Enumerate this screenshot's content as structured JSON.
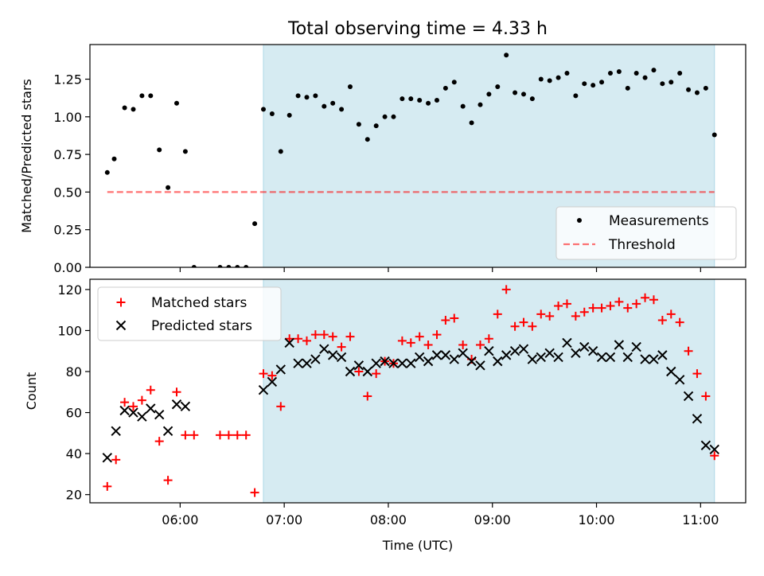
{
  "title": "Total observing time = 4.33 h",
  "colors": {
    "shade": "#add8e6",
    "threshold": "#ff0000",
    "matched": "#ff0000",
    "predicted": "#000000",
    "measurement": "#000000"
  },
  "chart_data": [
    {
      "type": "scatter",
      "ylabel": "Matched/Predicted stars",
      "xlim": [
        "05:08",
        "11:26"
      ],
      "ylim": [
        0,
        1.48
      ],
      "ytick_labels": [
        "0.00",
        "0.25",
        "0.50",
        "0.75",
        "1.00",
        "1.25"
      ],
      "shaded_span": [
        "06:48",
        "11:08"
      ],
      "legend": {
        "position": "lower right",
        "entries": [
          "Measurements",
          "Threshold"
        ]
      },
      "threshold": {
        "name": "Threshold",
        "value": 0.5,
        "x": [
          "05:18",
          "11:08"
        ],
        "style": "dashed"
      },
      "series": [
        {
          "name": "Measurements",
          "x": [
            "05:18",
            "05:22",
            "05:28",
            "05:33",
            "05:38",
            "05:43",
            "05:48",
            "05:53",
            "05:58",
            "06:03",
            "06:08",
            "06:23",
            "06:28",
            "06:33",
            "06:38",
            "06:43",
            "06:48",
            "06:53",
            "06:58",
            "07:03",
            "07:08",
            "07:13",
            "07:18",
            "07:23",
            "07:28",
            "07:33",
            "07:38",
            "07:43",
            "07:48",
            "07:53",
            "07:58",
            "08:03",
            "08:08",
            "08:13",
            "08:18",
            "08:23",
            "08:28",
            "08:33",
            "08:38",
            "08:43",
            "08:48",
            "08:53",
            "08:58",
            "09:03",
            "09:08",
            "09:13",
            "09:18",
            "09:23",
            "09:28",
            "09:33",
            "09:38",
            "09:43",
            "09:48",
            "09:53",
            "09:58",
            "10:03",
            "10:08",
            "10:13",
            "10:18",
            "10:23",
            "10:28",
            "10:33",
            "10:38",
            "10:43",
            "10:48",
            "10:53",
            "10:58",
            "11:03",
            "11:08"
          ],
          "y": [
            0.63,
            0.72,
            1.06,
            1.05,
            1.14,
            1.14,
            0.78,
            0.53,
            1.09,
            0.77,
            0.0,
            0.0,
            0.0,
            0.0,
            0.0,
            0.29,
            1.05,
            1.02,
            0.77,
            1.01,
            1.14,
            1.13,
            1.14,
            1.07,
            1.09,
            1.05,
            1.2,
            0.95,
            0.85,
            0.94,
            1.0,
            1.0,
            1.12,
            1.12,
            1.11,
            1.09,
            1.11,
            1.19,
            1.23,
            1.07,
            0.96,
            1.08,
            1.15,
            1.2,
            1.41,
            1.16,
            1.15,
            1.12,
            1.25,
            1.24,
            1.26,
            1.29,
            1.14,
            1.22,
            1.21,
            1.23,
            1.29,
            1.3,
            1.19,
            1.29,
            1.26,
            1.31,
            1.22,
            1.23,
            1.29,
            1.18,
            1.16,
            1.19,
            0.88
          ]
        }
      ]
    },
    {
      "type": "scatter",
      "xlabel": "Time (UTC)",
      "ylabel": "Count",
      "xlim": [
        "05:08",
        "11:26"
      ],
      "ylim": [
        16,
        125
      ],
      "xtick_labels": [
        "06:00",
        "07:00",
        "08:00",
        "09:00",
        "10:00",
        "11:00"
      ],
      "ytick_labels": [
        "20",
        "40",
        "60",
        "80",
        "100",
        "120"
      ],
      "shaded_span": [
        "06:48",
        "11:08"
      ],
      "legend": {
        "position": "upper left",
        "entries": [
          "Matched stars",
          "Predicted stars"
        ]
      },
      "series": [
        {
          "name": "Matched stars",
          "marker": "+",
          "x": [
            "05:18",
            "05:23",
            "05:28",
            "05:33",
            "05:38",
            "05:43",
            "05:48",
            "05:53",
            "05:58",
            "06:03",
            "06:08",
            "06:23",
            "06:28",
            "06:33",
            "06:38",
            "06:43",
            "06:48",
            "06:53",
            "06:58",
            "07:03",
            "07:08",
            "07:13",
            "07:18",
            "07:23",
            "07:28",
            "07:33",
            "07:38",
            "07:43",
            "07:48",
            "07:53",
            "07:58",
            "08:03",
            "08:08",
            "08:13",
            "08:18",
            "08:23",
            "08:28",
            "08:33",
            "08:38",
            "08:43",
            "08:48",
            "08:53",
            "08:58",
            "09:03",
            "09:08",
            "09:13",
            "09:18",
            "09:23",
            "09:28",
            "09:33",
            "09:38",
            "09:43",
            "09:48",
            "09:53",
            "09:58",
            "10:03",
            "10:08",
            "10:13",
            "10:18",
            "10:23",
            "10:28",
            "10:33",
            "10:38",
            "10:43",
            "10:48",
            "10:53",
            "10:58",
            "11:03",
            "11:08"
          ],
          "y": [
            24,
            37,
            65,
            63,
            66,
            71,
            46,
            27,
            70,
            49,
            49,
            49,
            49,
            49,
            49,
            21,
            79,
            78,
            63,
            96,
            96,
            95,
            98,
            98,
            97,
            92,
            97,
            80,
            68,
            79,
            85,
            84,
            95,
            94,
            97,
            93,
            98,
            105,
            106,
            93,
            86,
            93,
            96,
            108,
            120,
            102,
            104,
            102,
            108,
            107,
            112,
            113,
            107,
            109,
            111,
            111,
            112,
            114,
            111,
            113,
            116,
            115,
            105,
            108,
            104,
            90,
            79,
            68,
            39
          ]
        },
        {
          "name": "Predicted stars",
          "marker": "x",
          "x": [
            "05:18",
            "05:23",
            "05:28",
            "05:33",
            "05:38",
            "05:43",
            "05:48",
            "05:53",
            "05:58",
            "06:03",
            "06:48",
            "06:53",
            "06:58",
            "07:03",
            "07:08",
            "07:13",
            "07:18",
            "07:23",
            "07:28",
            "07:33",
            "07:38",
            "07:43",
            "07:48",
            "07:53",
            "07:58",
            "08:03",
            "08:08",
            "08:13",
            "08:18",
            "08:23",
            "08:28",
            "08:33",
            "08:38",
            "08:43",
            "08:48",
            "08:53",
            "08:58",
            "09:03",
            "09:08",
            "09:13",
            "09:18",
            "09:23",
            "09:28",
            "09:33",
            "09:38",
            "09:43",
            "09:48",
            "09:53",
            "09:58",
            "10:03",
            "10:08",
            "10:13",
            "10:18",
            "10:23",
            "10:28",
            "10:33",
            "10:38",
            "10:43",
            "10:48",
            "10:53",
            "10:58",
            "11:03",
            "11:08"
          ],
          "y": [
            38,
            51,
            61,
            60,
            58,
            62,
            59,
            51,
            64,
            63,
            71,
            75,
            81,
            94,
            84,
            84,
            86,
            91,
            88,
            87,
            80,
            83,
            80,
            84,
            85,
            84,
            84,
            84,
            87,
            85,
            88,
            88,
            86,
            89,
            85,
            83,
            90,
            85,
            88,
            90,
            91,
            86,
            87,
            89,
            87,
            94,
            89,
            92,
            90,
            87,
            87,
            93,
            87,
            92,
            86,
            86,
            88,
            80,
            76,
            68,
            57,
            44,
            42
          ]
        }
      ]
    }
  ]
}
